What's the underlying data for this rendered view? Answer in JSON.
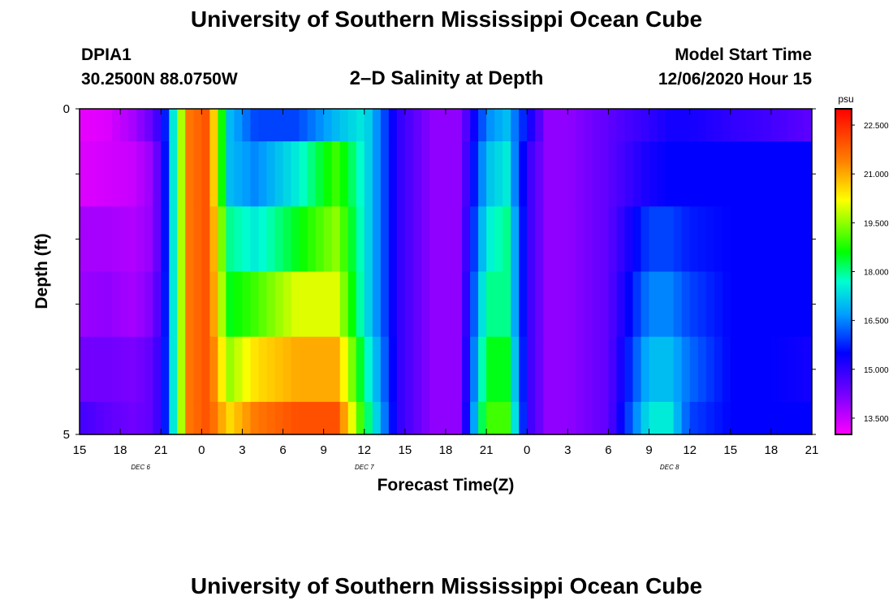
{
  "header": {
    "title": "University of Southern Mississippi Ocean Cube",
    "station_id": "DPIA1",
    "station_coords": "30.2500N 88.0750W",
    "model_start_label": "Model Start Time",
    "model_start_value": "12/06/2020 Hour 15"
  },
  "footer": {
    "title": "University of Southern Mississippi Ocean Cube"
  },
  "chart_data": {
    "type": "heatmap",
    "title": "2–D Salinity at Depth",
    "xlabel": "Forecast Time(Z)",
    "ylabel": "Depth (ft)",
    "x_tick_labels": [
      "15",
      "18",
      "21",
      "0",
      "3",
      "6",
      "9",
      "12",
      "15",
      "18",
      "21",
      "0",
      "3",
      "6",
      "9",
      "12",
      "15",
      "18",
      "21"
    ],
    "x_range_hours": [
      0,
      54
    ],
    "date_labels": [
      {
        "text": "DEC  6",
        "hour": 4.5
      },
      {
        "text": "DEC  7",
        "hour": 21
      },
      {
        "text": "DEC  8",
        "hour": 43.5
      }
    ],
    "y_tick_labels": [
      "0",
      "5"
    ],
    "ylim": [
      0,
      5
    ],
    "colorbar": {
      "unit": "psu",
      "min": 13.0,
      "max": 23.0,
      "tick_labels": [
        "22.500",
        "21.000",
        "19.500",
        "18.000",
        "16.500",
        "15.000",
        "13.500"
      ],
      "tick_values": [
        22.5,
        21.0,
        19.5,
        18.0,
        16.5,
        15.0,
        13.5
      ]
    },
    "row_bounds_ft": [
      [
        0,
        0.5
      ],
      [
        0.5,
        1.5
      ],
      [
        1.5,
        2.5
      ],
      [
        2.5,
        3.5
      ],
      [
        3.5,
        4.5
      ],
      [
        4.5,
        5.0
      ]
    ],
    "time_hours": [
      0,
      2,
      4,
      5.5,
      6.5,
      8,
      9.5,
      11,
      13,
      16,
      19,
      21,
      23.5,
      26,
      28,
      30,
      31.5,
      33,
      34.5,
      36,
      39,
      42,
      43.5,
      45,
      48,
      51,
      54
    ],
    "salinity_psu": [
      [
        13.2,
        13.3,
        13.8,
        14.5,
        16.0,
        21.5,
        22.0,
        17.0,
        16.0,
        16.0,
        17.0,
        17.5,
        15.0,
        14.0,
        14.0,
        16.5,
        17.0,
        15.5,
        14.0,
        14.0,
        14.5,
        15.0,
        15.3,
        15.3,
        15.0,
        14.8,
        14.5
      ],
      [
        13.3,
        13.4,
        13.5,
        14.0,
        16.0,
        21.5,
        22.0,
        17.0,
        16.5,
        17.5,
        19.0,
        17.5,
        15.0,
        14.0,
        14.0,
        17.0,
        17.5,
        15.0,
        14.0,
        14.0,
        14.5,
        15.3,
        15.5,
        15.5,
        15.5,
        15.5,
        15.5
      ],
      [
        13.8,
        13.8,
        13.7,
        14.0,
        16.0,
        21.5,
        22.0,
        18.0,
        17.5,
        18.5,
        19.5,
        17.5,
        15.0,
        14.0,
        14.0,
        17.5,
        18.0,
        15.0,
        14.0,
        14.0,
        14.5,
        16.0,
        16.0,
        15.7,
        15.5,
        15.5,
        15.5
      ],
      [
        13.9,
        14.0,
        13.8,
        14.2,
        16.0,
        21.5,
        22.0,
        18.5,
        19.0,
        20.0,
        20.0,
        17.5,
        15.0,
        14.0,
        14.0,
        18.0,
        18.0,
        15.0,
        14.0,
        14.0,
        14.5,
        16.5,
        16.5,
        16.0,
        15.5,
        15.5,
        15.5
      ],
      [
        14.3,
        14.3,
        14.2,
        14.5,
        16.0,
        21.5,
        22.0,
        19.5,
        20.5,
        21.0,
        21.0,
        18.0,
        15.0,
        14.0,
        14.0,
        18.5,
        18.5,
        15.0,
        14.0,
        14.0,
        14.5,
        17.0,
        17.0,
        16.3,
        15.5,
        15.5,
        15.3
      ],
      [
        14.8,
        14.5,
        14.3,
        14.5,
        16.0,
        21.5,
        22.0,
        20.5,
        21.5,
        22.0,
        22.0,
        18.5,
        15.0,
        14.0,
        14.0,
        19.0,
        19.0,
        15.0,
        14.0,
        14.0,
        14.5,
        17.5,
        17.5,
        16.0,
        15.5,
        15.5,
        15.5
      ]
    ]
  }
}
